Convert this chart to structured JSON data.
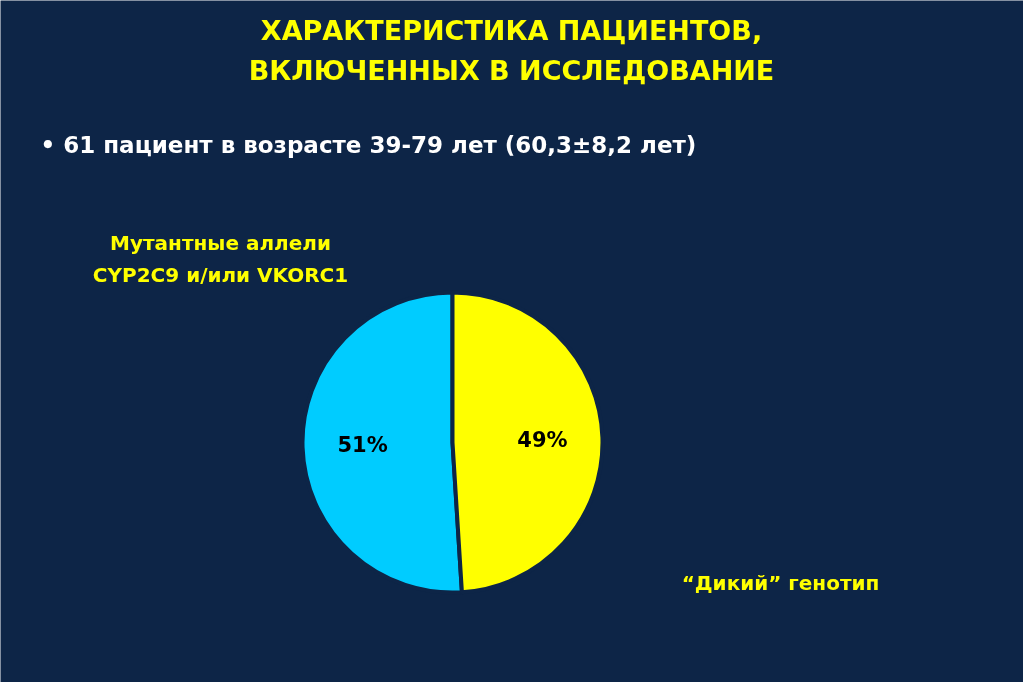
{
  "chart_data": {
    "type": "pie",
    "title": "ХАРАКТЕРИСТИКА ПАЦИЕНТОВ, ВКЛЮЧЕННЫХ В ИССЛЕДОВАНИЕ",
    "subtitle": "• 61 пациент в возрасте 39-79 лет (60,3±8,2 лет)",
    "categories": [
      "Мутантные аллели CYP2C9 и/или VKORC1",
      "“Дикий” генотип"
    ],
    "values": [
      51,
      49
    ],
    "colors": [
      "#00ccff",
      "#ffff00"
    ],
    "value_labels": [
      "51%",
      "49%"
    ]
  }
}
